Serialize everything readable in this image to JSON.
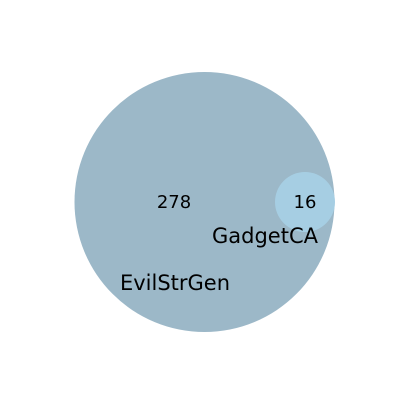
{
  "diagram": {
    "type": "venn",
    "sets": [
      {
        "name": "EvilStrGen",
        "color": "#9cb8c8"
      },
      {
        "name": "GadgetCA",
        "color": "#a6cee3"
      }
    ],
    "regions": {
      "evilstrgen_only": "278",
      "intersection": "16"
    }
  }
}
